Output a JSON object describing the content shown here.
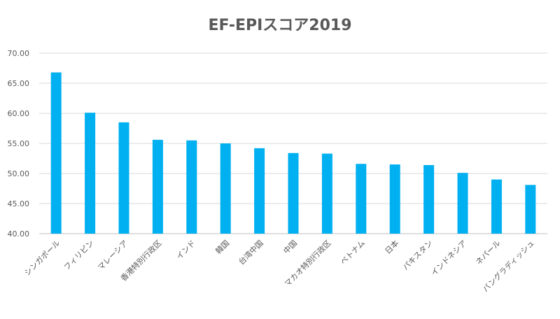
{
  "chart_data": {
    "type": "bar",
    "title": "EF-EPIスコア2019",
    "xlabel": "",
    "ylabel": "",
    "ylim": [
      40,
      70
    ],
    "yticks": [
      "40.00",
      "45.00",
      "50.00",
      "55.00",
      "60.00",
      "65.00",
      "70.00"
    ],
    "grid": true,
    "bar_color": "#00b0f0",
    "categories": [
      "シンガポール",
      "フィリピン",
      "マレーシア",
      "香港特別行政区",
      "インド",
      "韓国",
      "台湾中国",
      "中国",
      "マカオ特別行政区",
      "ベトナム",
      "日本",
      "パキスタン",
      "インドネシア",
      "ネパール",
      "バングラディッシュ"
    ],
    "values": [
      66.8,
      60.1,
      58.5,
      55.6,
      55.5,
      55.0,
      54.2,
      53.4,
      53.3,
      51.6,
      51.5,
      51.4,
      50.1,
      49.0,
      48.1
    ]
  }
}
